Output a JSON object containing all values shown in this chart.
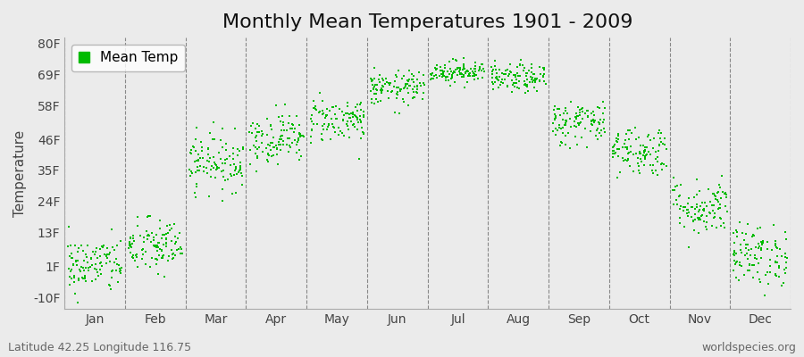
{
  "title": "Monthly Mean Temperatures 1901 - 2009",
  "ylabel": "Temperature",
  "bottom_left_text": "Latitude 42.25 Longitude 116.75",
  "bottom_right_text": "worldspecies.org",
  "legend_label": "Mean Temp",
  "yticks": [
    -10,
    1,
    13,
    24,
    35,
    46,
    58,
    69,
    80
  ],
  "ytick_labels": [
    "-10F",
    "1F",
    "13F",
    "24F",
    "35F",
    "46F",
    "58F",
    "69F",
    "80F"
  ],
  "ylim": [
    -14,
    82
  ],
  "months": [
    "Jan",
    "Feb",
    "Mar",
    "Apr",
    "May",
    "Jun",
    "Jul",
    "Aug",
    "Sep",
    "Oct",
    "Nov",
    "Dec"
  ],
  "month_means": [
    1.5,
    8.0,
    38.0,
    46.5,
    53.0,
    64.0,
    70.0,
    67.5,
    52.0,
    42.0,
    22.0,
    5.0
  ],
  "month_stds": [
    5.0,
    5.0,
    5.0,
    4.5,
    4.0,
    3.0,
    2.0,
    2.5,
    4.0,
    4.5,
    5.0,
    5.5
  ],
  "n_years": 109,
  "dot_color": "#00bb00",
  "dot_size": 3,
  "background_color": "#ebebeb",
  "plot_bg_color": "#ebebeb",
  "grid_color": "#888888",
  "title_fontsize": 16,
  "axis_fontsize": 11,
  "tick_fontsize": 10,
  "annotation_fontsize": 9
}
